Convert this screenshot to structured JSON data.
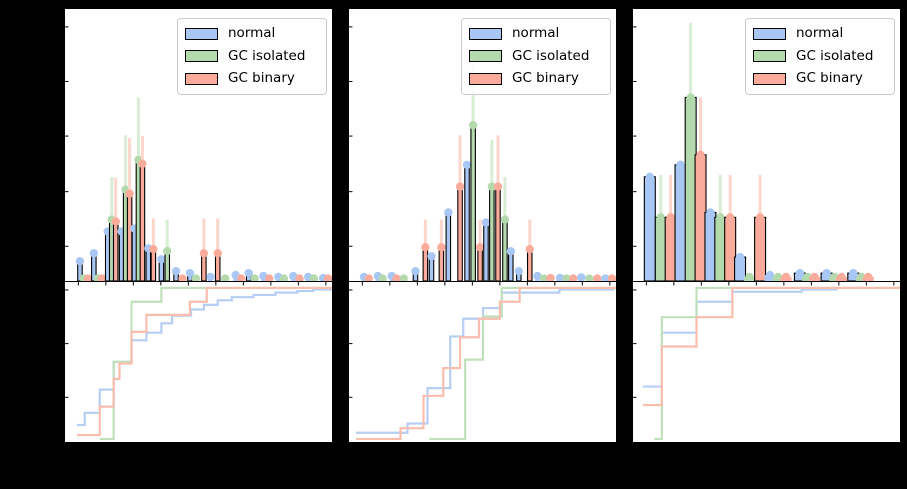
{
  "figure": {
    "background": "#000000",
    "panel_background": "#ffffff",
    "spine_color": "#000000",
    "visible_text_note": "no axis tick labels, titles or axis labels are visible (black margins)"
  },
  "legend": {
    "items": [
      {
        "label": "normal",
        "color": "#a9c7f4"
      },
      {
        "label": "GC isolated",
        "color": "#b3d9ad"
      },
      {
        "label": "GC binary",
        "color": "#fbab9b"
      }
    ]
  },
  "colors": {
    "series": [
      {
        "name": "normal",
        "fill": "#a9c7f4",
        "err": "#d4e3fa",
        "line": "#b6cef4"
      },
      {
        "name": "GC isolated",
        "fill": "#b3d9ad",
        "err": "#d9ecd6",
        "line": "#c0e0bb"
      },
      {
        "name": "GC binary",
        "fill": "#fbab9b",
        "err": "#fdd6cb",
        "line": "#f9bdae"
      }
    ],
    "edge": "#000000"
  },
  "chart_data": [
    {
      "type": "bar",
      "subtype": "histogram-with-errorbars-plus-cdf",
      "title": "",
      "xlabel": "",
      "ylabel": "",
      "legend_entries": [
        "normal",
        "GC isolated",
        "GC binary"
      ],
      "units": "x = fraction of panel width; h,e = bar top / error-bar top as fraction of histogram panel height; cdf value v in 0..1",
      "bar_width": 0.0167,
      "bars": [
        {
          "x": 0.056,
          "s": 0,
          "h": 0.073
        },
        {
          "x": 0.071,
          "s": 1,
          "h": 0.007
        },
        {
          "x": 0.086,
          "s": 2,
          "h": 0.007
        },
        {
          "x": 0.108,
          "s": 0,
          "h": 0.102
        },
        {
          "x": 0.123,
          "s": 1,
          "h": 0.007
        },
        {
          "x": 0.138,
          "s": 2,
          "h": 0.007
        },
        {
          "x": 0.16,
          "s": 0,
          "h": 0.182
        },
        {
          "x": 0.175,
          "s": 1,
          "h": 0.226,
          "e": 0.383
        },
        {
          "x": 0.19,
          "s": 2,
          "h": 0.219,
          "e": 0.38
        },
        {
          "x": 0.212,
          "s": 0,
          "h": 0.182
        },
        {
          "x": 0.227,
          "s": 1,
          "h": 0.336,
          "e": 0.536
        },
        {
          "x": 0.242,
          "s": 2,
          "h": 0.321,
          "e": 0.526
        },
        {
          "x": 0.26,
          "s": 0,
          "h": 0.193
        },
        {
          "x": 0.275,
          "s": 1,
          "h": 0.445,
          "e": 0.675
        },
        {
          "x": 0.29,
          "s": 2,
          "h": 0.431,
          "e": 0.533
        },
        {
          "x": 0.312,
          "s": 0,
          "h": 0.12
        },
        {
          "x": 0.331,
          "s": 2,
          "h": 0.117,
          "e": 0.23
        },
        {
          "x": 0.361,
          "s": 0,
          "h": 0.08
        },
        {
          "x": 0.383,
          "s": 1,
          "h": 0.11,
          "e": 0.226
        },
        {
          "x": 0.416,
          "s": 0,
          "h": 0.036
        },
        {
          "x": 0.44,
          "s": 2,
          "h": 0.007
        },
        {
          "x": 0.468,
          "s": 0,
          "h": 0.029
        },
        {
          "x": 0.49,
          "s": 1,
          "h": 0.007
        },
        {
          "x": 0.52,
          "s": 2,
          "h": 0.102,
          "e": 0.23
        },
        {
          "x": 0.545,
          "s": 0,
          "h": 0.015
        },
        {
          "x": 0.572,
          "s": 2,
          "h": 0.102,
          "e": 0.23
        },
        {
          "x": 0.6,
          "s": 1,
          "h": 0.007
        },
        {
          "x": 0.639,
          "s": 0,
          "h": 0.022
        },
        {
          "x": 0.66,
          "s": 2,
          "h": 0.007
        },
        {
          "x": 0.688,
          "s": 0,
          "h": 0.029
        },
        {
          "x": 0.71,
          "s": 1,
          "h": 0.007
        },
        {
          "x": 0.743,
          "s": 0,
          "h": 0.018
        },
        {
          "x": 0.765,
          "s": 2,
          "h": 0.007
        },
        {
          "x": 0.799,
          "s": 0,
          "h": 0.015
        },
        {
          "x": 0.82,
          "s": 1,
          "h": 0.007
        },
        {
          "x": 0.855,
          "s": 0,
          "h": 0.018
        },
        {
          "x": 0.878,
          "s": 2,
          "h": 0.007
        },
        {
          "x": 0.911,
          "s": 0,
          "h": 0.015
        },
        {
          "x": 0.932,
          "s": 1,
          "h": 0.007
        },
        {
          "x": 0.967,
          "s": 0,
          "h": 0.011
        },
        {
          "x": 0.985,
          "s": 2,
          "h": 0.007
        }
      ],
      "cdf": [
        {
          "s": 0,
          "name": "normal",
          "points": [
            [
              0.045,
              0.11
            ],
            [
              0.074,
              0.19
            ],
            [
              0.13,
              0.34
            ],
            [
              0.182,
              0.52
            ],
            [
              0.249,
              0.66
            ],
            [
              0.305,
              0.71
            ],
            [
              0.361,
              0.77
            ],
            [
              0.401,
              0.82
            ],
            [
              0.472,
              0.86
            ],
            [
              0.52,
              0.89
            ],
            [
              0.572,
              0.92
            ],
            [
              0.625,
              0.94
            ],
            [
              0.706,
              0.955
            ],
            [
              0.788,
              0.97
            ],
            [
              0.87,
              0.98
            ],
            [
              0.929,
              0.99
            ],
            [
              0.995,
              1.0
            ]
          ]
        },
        {
          "s": 1,
          "name": "GC isolated",
          "points": [
            [
              0.13,
              0.02
            ],
            [
              0.182,
              0.52
            ],
            [
              0.249,
              0.91
            ],
            [
              0.361,
              1.0
            ]
          ]
        },
        {
          "s": 2,
          "name": "GC binary",
          "points": [
            [
              0.045,
              0.045
            ],
            [
              0.13,
              0.23
            ],
            [
              0.182,
              0.41
            ],
            [
              0.204,
              0.51
            ],
            [
              0.249,
              0.715
            ],
            [
              0.305,
              0.825
            ],
            [
              0.468,
              0.91
            ],
            [
              0.531,
              1.0
            ]
          ]
        }
      ]
    },
    {
      "type": "bar",
      "subtype": "histogram-with-errorbars-plus-cdf",
      "title": "",
      "xlabel": "",
      "ylabel": "",
      "legend_entries": [
        "normal",
        "GC isolated",
        "GC binary"
      ],
      "units": "x = fraction of panel width; h,e = bar top / error-bar top as fraction of histogram panel height; cdf value v in 0..1",
      "bar_width": 0.0167,
      "bars": [
        {
          "x": 0.056,
          "s": 0,
          "h": 0.015
        },
        {
          "x": 0.074,
          "s": 2,
          "h": 0.007
        },
        {
          "x": 0.108,
          "s": 0,
          "h": 0.018
        },
        {
          "x": 0.126,
          "s": 1,
          "h": 0.007
        },
        {
          "x": 0.16,
          "s": 0,
          "h": 0.018
        },
        {
          "x": 0.178,
          "s": 2,
          "h": 0.007
        },
        {
          "x": 0.205,
          "s": 1,
          "h": 0.007
        },
        {
          "x": 0.249,
          "s": 0,
          "h": 0.036
        },
        {
          "x": 0.286,
          "s": 2,
          "h": 0.124,
          "e": 0.226
        },
        {
          "x": 0.309,
          "s": 0,
          "h": 0.091
        },
        {
          "x": 0.346,
          "s": 2,
          "h": 0.124,
          "e": 0.226
        },
        {
          "x": 0.372,
          "s": 0,
          "h": 0.252
        },
        {
          "x": 0.416,
          "s": 2,
          "h": 0.347,
          "e": 0.536
        },
        {
          "x": 0.442,
          "s": 0,
          "h": 0.427
        },
        {
          "x": 0.465,
          "s": 1,
          "h": 0.573,
          "e": 0.828
        },
        {
          "x": 0.491,
          "s": 2,
          "h": 0.124,
          "e": 0.226
        },
        {
          "x": 0.513,
          "s": 0,
          "h": 0.215
        },
        {
          "x": 0.535,
          "s": 1,
          "h": 0.347,
          "e": 0.518
        },
        {
          "x": 0.558,
          "s": 2,
          "h": 0.347,
          "e": 0.536
        },
        {
          "x": 0.584,
          "s": 1,
          "h": 0.226,
          "e": 0.383
        },
        {
          "x": 0.606,
          "s": 0,
          "h": 0.109
        },
        {
          "x": 0.636,
          "s": 0,
          "h": 0.036
        },
        {
          "x": 0.677,
          "s": 2,
          "h": 0.117,
          "e": 0.226
        },
        {
          "x": 0.706,
          "s": 0,
          "h": 0.018
        },
        {
          "x": 0.73,
          "s": 1,
          "h": 0.007
        },
        {
          "x": 0.755,
          "s": 2,
          "h": 0.011
        },
        {
          "x": 0.79,
          "s": 0,
          "h": 0.011
        },
        {
          "x": 0.815,
          "s": 1,
          "h": 0.007
        },
        {
          "x": 0.84,
          "s": 2,
          "h": 0.009
        },
        {
          "x": 0.87,
          "s": 0,
          "h": 0.013
        },
        {
          "x": 0.9,
          "s": 1,
          "h": 0.007
        },
        {
          "x": 0.93,
          "s": 2,
          "h": 0.009
        },
        {
          "x": 0.96,
          "s": 0,
          "h": 0.007
        },
        {
          "x": 0.985,
          "s": 2,
          "h": 0.007
        }
      ],
      "cdf": [
        {
          "s": 0,
          "name": "normal",
          "points": [
            [
              0.026,
              0.06
            ],
            [
              0.219,
              0.12
            ],
            [
              0.294,
              0.35
            ],
            [
              0.379,
              0.685
            ],
            [
              0.428,
              0.8
            ],
            [
              0.502,
              0.87
            ],
            [
              0.572,
              0.97
            ],
            [
              0.788,
              0.99
            ],
            [
              0.99,
              1.0
            ]
          ]
        },
        {
          "s": 1,
          "name": "GC isolated",
          "points": [
            [
              0.3,
              0.02
            ],
            [
              0.435,
              0.535
            ],
            [
              0.502,
              0.815
            ],
            [
              0.572,
              1.0
            ]
          ]
        },
        {
          "s": 2,
          "name": "GC binary",
          "points": [
            [
              0.026,
              0.02
            ],
            [
              0.193,
              0.09
            ],
            [
              0.279,
              0.3
            ],
            [
              0.353,
              0.48
            ],
            [
              0.416,
              0.68
            ],
            [
              0.487,
              0.8
            ],
            [
              0.565,
              0.91
            ],
            [
              0.639,
              1.0
            ]
          ]
        }
      ]
    },
    {
      "type": "bar",
      "subtype": "histogram-with-errorbars-plus-cdf",
      "title": "",
      "xlabel": "",
      "ylabel": "",
      "legend_entries": [
        "normal",
        "GC isolated",
        "GC binary"
      ],
      "units": "x = fraction of panel width; h,e = bar top / error-bar top as fraction of histogram panel height; cdf value v in 0..1",
      "bar_width": 0.041,
      "bars": [
        {
          "x": 0.063,
          "s": 0,
          "h": 0.383
        },
        {
          "x": 0.104,
          "s": 1,
          "h": 0.234,
          "e": 0.39
        },
        {
          "x": 0.141,
          "s": 2,
          "h": 0.234,
          "e": 0.39
        },
        {
          "x": 0.178,
          "s": 0,
          "h": 0.427
        },
        {
          "x": 0.216,
          "s": 1,
          "h": 0.675,
          "e": 0.949
        },
        {
          "x": 0.253,
          "s": 2,
          "h": 0.464,
          "e": 0.675
        },
        {
          "x": 0.29,
          "s": 0,
          "h": 0.252
        },
        {
          "x": 0.327,
          "s": 1,
          "h": 0.234,
          "e": 0.39
        },
        {
          "x": 0.364,
          "s": 2,
          "h": 0.234,
          "e": 0.39
        },
        {
          "x": 0.401,
          "s": 0,
          "h": 0.088
        },
        {
          "x": 0.436,
          "s": 1,
          "h": 0.015
        },
        {
          "x": 0.476,
          "s": 2,
          "h": 0.234,
          "e": 0.39
        },
        {
          "x": 0.513,
          "s": 0,
          "h": 0.022
        },
        {
          "x": 0.543,
          "s": 1,
          "h": 0.015
        },
        {
          "x": 0.573,
          "s": 2,
          "h": 0.015
        },
        {
          "x": 0.625,
          "s": 0,
          "h": 0.029
        },
        {
          "x": 0.654,
          "s": 1,
          "h": 0.015
        },
        {
          "x": 0.68,
          "s": 2,
          "h": 0.015
        },
        {
          "x": 0.725,
          "s": 0,
          "h": 0.029
        },
        {
          "x": 0.755,
          "s": 1,
          "h": 0.015
        },
        {
          "x": 0.781,
          "s": 2,
          "h": 0.015
        },
        {
          "x": 0.825,
          "s": 0,
          "h": 0.029
        },
        {
          "x": 0.855,
          "s": 1,
          "h": 0.015
        },
        {
          "x": 0.881,
          "s": 2,
          "h": 0.015
        }
      ],
      "cdf": [
        {
          "s": 0,
          "name": "normal",
          "points": [
            [
              0.037,
              0.36
            ],
            [
              0.108,
              0.71
            ],
            [
              0.238,
              0.91
            ],
            [
              0.372,
              0.975
            ],
            [
              0.632,
              0.99
            ],
            [
              0.762,
              1.0
            ]
          ]
        },
        {
          "s": 1,
          "name": "GC isolated",
          "points": [
            [
              0.08,
              0.02
            ],
            [
              0.108,
              0.81
            ],
            [
              0.238,
              1.0
            ]
          ]
        },
        {
          "s": 2,
          "name": "GC binary",
          "points": [
            [
              0.037,
              0.24
            ],
            [
              0.108,
              0.62
            ],
            [
              0.238,
              0.81
            ],
            [
              0.372,
              1.0
            ]
          ]
        }
      ]
    }
  ]
}
